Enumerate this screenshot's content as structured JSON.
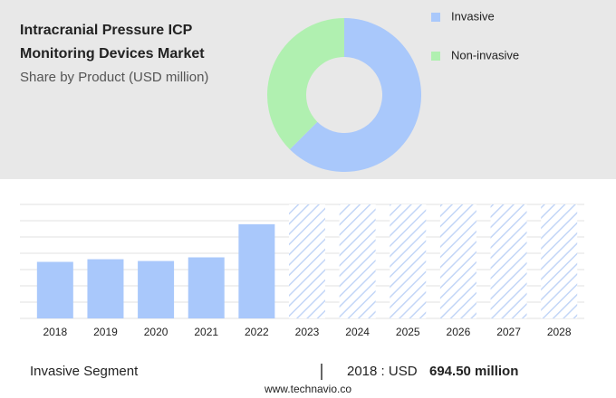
{
  "title_lines": [
    "Intracranial Pressure ICP",
    "Monitoring Devices Market"
  ],
  "subtitle": "Share by Product (USD million)",
  "chart_data": [
    {
      "type": "donut",
      "categories": [
        "Invasive",
        "Non-invasive"
      ],
      "values": [
        62.5,
        37.5
      ],
      "colors": [
        "#a9c8fb",
        "#b0f0b0"
      ],
      "legend": "right"
    },
    {
      "type": "bar",
      "categories": [
        "2018",
        "2019",
        "2020",
        "2021",
        "2022",
        "2023",
        "2024",
        "2025",
        "2026",
        "2027",
        "2028"
      ],
      "values": [
        694.5,
        727,
        705,
        750,
        1157,
        null,
        null,
        null,
        null,
        null,
        null
      ],
      "color": "#a9c8fb",
      "ylim": [
        0,
        1400
      ],
      "yticks": [
        0,
        200,
        400,
        600,
        800,
        1000,
        1200,
        1400
      ],
      "grid": true
    }
  ],
  "footer": {
    "segment": "Invasive Segment",
    "year_unit": "2018 : USD",
    "value": "694.50 million",
    "source": "www.technavio.co"
  }
}
